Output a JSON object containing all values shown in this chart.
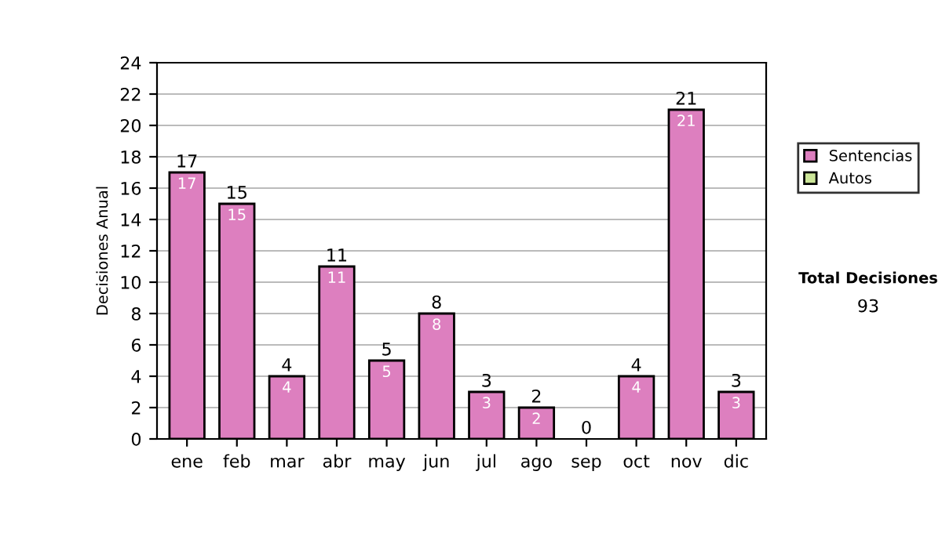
{
  "chart_data": {
    "type": "bar",
    "ylabel": "Decisiones Anual",
    "categories": [
      "ene",
      "feb",
      "mar",
      "abr",
      "may",
      "jun",
      "jul",
      "ago",
      "sep",
      "oct",
      "nov",
      "dic"
    ],
    "stacked": true,
    "series": [
      {
        "name": "Sentencias",
        "color": "#dd7fbf",
        "values": [
          17,
          15,
          4,
          11,
          5,
          8,
          3,
          2,
          0,
          4,
          21,
          3
        ],
        "value_labels": [
          "17",
          "15",
          "4",
          "11",
          "5",
          "8",
          "3",
          "2",
          null,
          "4",
          "21",
          "3"
        ]
      },
      {
        "name": "Autos",
        "color": "#cce699",
        "values": [
          0,
          0,
          0,
          0,
          0,
          0,
          0,
          0,
          0,
          0,
          0,
          0
        ]
      }
    ],
    "totals": [
      "17",
      "15",
      "4",
      "11",
      "5",
      "8",
      "3",
      "2",
      "0",
      "4",
      "21",
      "3"
    ],
    "ylim": [
      0,
      24
    ],
    "yticks": [
      0,
      2,
      4,
      6,
      8,
      10,
      12,
      14,
      16,
      18,
      20,
      22,
      24
    ],
    "grid": "y",
    "legend": "right",
    "annotations": [
      "Total Decisiones",
      "93"
    ]
  }
}
